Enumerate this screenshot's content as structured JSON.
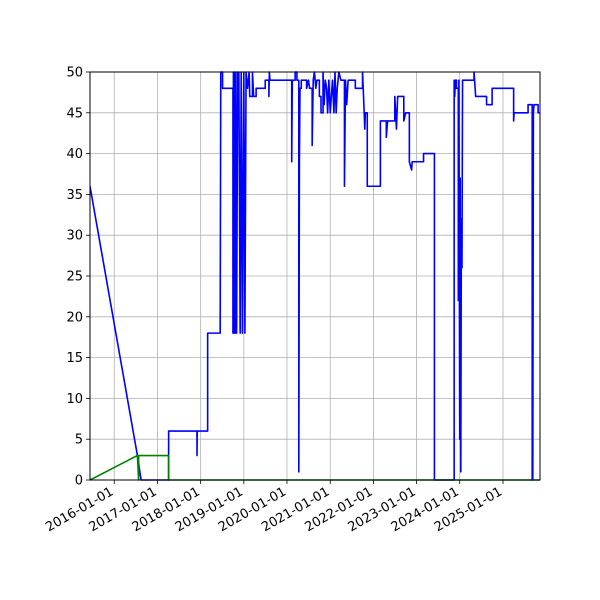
{
  "chart_data": {
    "type": "line",
    "title": "",
    "xlabel": "",
    "ylabel": "",
    "x_type": "date",
    "xlim": [
      "2015-06-10",
      "2025-11-10"
    ],
    "ylim": [
      0,
      50
    ],
    "x_ticks": [
      "2016-01-01",
      "2017-01-01",
      "2018-01-01",
      "2019-01-01",
      "2020-01-01",
      "2021-01-01",
      "2022-01-01",
      "2023-01-01",
      "2024-01-01",
      "2025-01-01"
    ],
    "y_ticks": [
      0,
      5,
      10,
      15,
      20,
      25,
      30,
      35,
      40,
      45,
      50
    ],
    "grid": true,
    "legend": "none",
    "series": [
      {
        "color": "#0000ff",
        "points": [
          [
            "2015-06-10",
            36
          ],
          [
            "2016-07-15",
            3
          ],
          [
            "2016-08-15",
            0
          ],
          [
            "2017-04-05",
            0
          ],
          [
            "2017-04-05",
            6
          ],
          [
            "2017-12-01",
            6
          ],
          [
            "2017-12-01",
            3
          ],
          [
            "2017-12-03",
            6
          ],
          [
            "2018-03-01",
            6
          ],
          [
            "2018-03-01",
            18
          ],
          [
            "2018-06-15",
            18
          ],
          [
            "2018-06-20",
            50
          ],
          [
            "2018-07-05",
            50
          ],
          [
            "2018-07-05",
            48
          ],
          [
            "2018-10-01",
            48
          ],
          [
            "2018-10-01",
            18
          ],
          [
            "2018-10-05",
            50
          ],
          [
            "2018-10-10",
            18
          ],
          [
            "2018-10-15",
            50
          ],
          [
            "2018-10-20",
            18
          ],
          [
            "2018-10-25",
            50
          ],
          [
            "2018-11-01",
            18
          ],
          [
            "2018-11-10",
            50
          ],
          [
            "2018-11-15",
            48
          ],
          [
            "2018-11-20",
            50
          ],
          [
            "2018-12-01",
            18
          ],
          [
            "2018-12-10",
            50
          ],
          [
            "2018-12-20",
            18
          ],
          [
            "2019-01-01",
            50
          ],
          [
            "2019-01-10",
            18
          ],
          [
            "2019-01-20",
            50
          ],
          [
            "2019-02-01",
            48
          ],
          [
            "2019-02-15",
            50
          ],
          [
            "2019-02-20",
            47
          ],
          [
            "2019-03-15",
            47
          ],
          [
            "2019-03-15",
            50
          ],
          [
            "2019-03-25",
            47
          ],
          [
            "2019-04-15",
            47
          ],
          [
            "2019-04-15",
            48
          ],
          [
            "2019-07-01",
            48
          ],
          [
            "2019-07-01",
            49
          ],
          [
            "2019-08-01",
            49
          ],
          [
            "2019-08-01",
            47
          ],
          [
            "2019-08-05",
            50
          ],
          [
            "2019-08-10",
            49
          ],
          [
            "2020-02-10",
            49
          ],
          [
            "2020-02-10",
            39
          ],
          [
            "2020-02-15",
            49
          ],
          [
            "2020-03-10",
            49
          ],
          [
            "2020-03-10",
            50
          ],
          [
            "2020-03-25",
            50
          ],
          [
            "2020-03-25",
            49
          ],
          [
            "2020-04-10",
            49
          ],
          [
            "2020-04-10",
            1
          ],
          [
            "2020-04-15",
            39
          ],
          [
            "2020-04-20",
            48
          ],
          [
            "2020-05-01",
            48
          ],
          [
            "2020-05-01",
            49
          ],
          [
            "2020-06-15",
            49
          ],
          [
            "2020-06-15",
            48
          ],
          [
            "2020-07-01",
            49
          ],
          [
            "2020-07-10",
            48
          ],
          [
            "2020-08-01",
            48
          ],
          [
            "2020-08-01",
            41
          ],
          [
            "2020-08-10",
            49
          ],
          [
            "2020-08-20",
            50
          ],
          [
            "2020-09-01",
            48
          ],
          [
            "2020-09-10",
            49
          ],
          [
            "2020-10-01",
            49
          ],
          [
            "2020-10-01",
            47
          ],
          [
            "2020-10-15",
            47
          ],
          [
            "2020-10-15",
            45
          ],
          [
            "2020-11-01",
            45
          ],
          [
            "2020-11-01",
            50
          ],
          [
            "2020-11-10",
            46
          ],
          [
            "2020-11-20",
            49
          ],
          [
            "2020-12-01",
            48
          ],
          [
            "2020-12-10",
            45
          ],
          [
            "2020-12-20",
            49
          ],
          [
            "2021-01-01",
            45
          ],
          [
            "2021-01-10",
            47
          ],
          [
            "2021-01-20",
            49
          ],
          [
            "2021-02-01",
            45
          ],
          [
            "2021-02-10",
            50
          ],
          [
            "2021-02-20",
            45
          ],
          [
            "2021-03-01",
            48
          ],
          [
            "2021-03-15",
            50
          ],
          [
            "2021-04-01",
            49
          ],
          [
            "2021-05-01",
            49
          ],
          [
            "2021-05-01",
            36
          ],
          [
            "2021-05-10",
            49
          ],
          [
            "2021-05-20",
            46
          ],
          [
            "2021-06-01",
            49
          ],
          [
            "2021-08-01",
            49
          ],
          [
            "2021-08-01",
            48
          ],
          [
            "2021-10-01",
            48
          ],
          [
            "2021-10-01",
            50
          ],
          [
            "2021-10-15",
            45
          ],
          [
            "2021-10-20",
            43
          ],
          [
            "2021-10-25",
            45
          ],
          [
            "2021-11-10",
            45
          ],
          [
            "2021-11-10",
            36
          ],
          [
            "2022-03-01",
            36
          ],
          [
            "2022-03-01",
            44
          ],
          [
            "2022-04-20",
            44
          ],
          [
            "2022-04-20",
            42
          ],
          [
            "2022-05-01",
            44
          ],
          [
            "2022-07-01",
            44
          ],
          [
            "2022-07-01",
            47
          ],
          [
            "2022-07-15",
            43
          ],
          [
            "2022-07-25",
            47
          ],
          [
            "2022-09-15",
            47
          ],
          [
            "2022-09-15",
            44
          ],
          [
            "2022-10-01",
            45
          ],
          [
            "2022-11-01",
            45
          ],
          [
            "2022-11-01",
            39
          ],
          [
            "2022-11-20",
            38
          ],
          [
            "2022-11-25",
            39
          ],
          [
            "2023-03-01",
            39
          ],
          [
            "2023-03-01",
            40
          ],
          [
            "2023-06-01",
            40
          ],
          [
            "2023-06-01",
            0
          ],
          [
            "2023-11-15",
            0
          ],
          [
            "2023-11-15",
            49
          ],
          [
            "2023-11-20",
            47
          ],
          [
            "2023-11-25",
            49
          ],
          [
            "2023-12-05",
            49
          ],
          [
            "2023-12-05",
            48
          ],
          [
            "2023-12-20",
            48
          ],
          [
            "2023-12-20",
            22
          ],
          [
            "2023-12-25",
            49
          ],
          [
            "2024-01-01",
            5
          ],
          [
            "2024-01-05",
            37
          ],
          [
            "2024-01-10",
            1
          ],
          [
            "2024-01-15",
            32
          ],
          [
            "2024-01-20",
            26
          ],
          [
            "2024-01-25",
            49
          ],
          [
            "2024-05-01",
            49
          ],
          [
            "2024-05-01",
            50
          ],
          [
            "2024-05-15",
            47
          ],
          [
            "2024-08-15",
            47
          ],
          [
            "2024-08-15",
            46
          ],
          [
            "2024-10-01",
            46
          ],
          [
            "2024-10-01",
            48
          ],
          [
            "2025-04-01",
            48
          ],
          [
            "2025-04-01",
            44
          ],
          [
            "2025-04-05",
            45
          ],
          [
            "2025-08-01",
            45
          ],
          [
            "2025-08-01",
            46
          ],
          [
            "2025-09-05",
            46
          ],
          [
            "2025-09-05",
            0
          ],
          [
            "2025-09-10",
            0
          ],
          [
            "2025-09-15",
            45
          ],
          [
            "2025-09-20",
            46
          ],
          [
            "2025-10-25",
            46
          ],
          [
            "2025-10-25",
            45
          ],
          [
            "2025-11-10",
            45
          ]
        ]
      },
      {
        "color": "#008000",
        "points": [
          [
            "2015-06-10",
            0
          ],
          [
            "2016-07-15",
            3
          ],
          [
            "2016-07-25",
            0
          ],
          [
            "2016-07-25",
            3
          ],
          [
            "2017-04-05",
            3
          ],
          [
            "2017-04-05",
            0
          ],
          [
            "2025-11-10",
            0
          ]
        ]
      }
    ]
  }
}
